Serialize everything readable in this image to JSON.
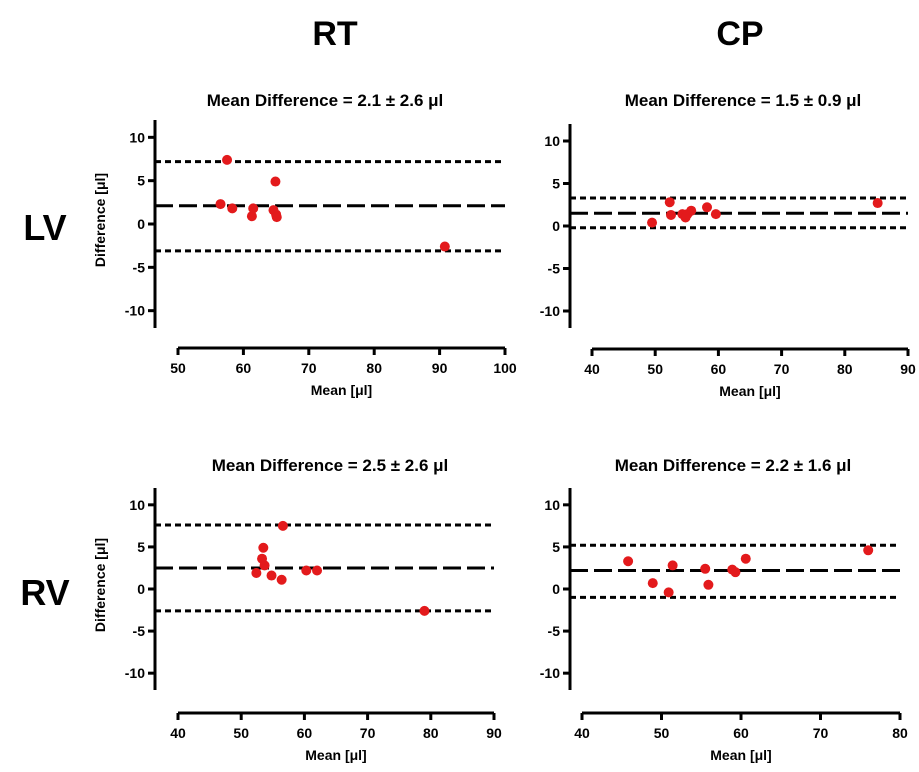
{
  "column_headers": [
    "RT",
    "CP"
  ],
  "row_headers": [
    "LV",
    "RV"
  ],
  "colors": {
    "point": "#e31a1c",
    "line": "#000000"
  },
  "chart_data": [
    {
      "type": "scatter",
      "title": "Mean Difference = 2.1 ± 2.6 μl",
      "xlabel": "Mean [μl]",
      "ylabel": "Difference [μl]",
      "xlim": [
        50,
        100
      ],
      "ylim": [
        -12,
        12
      ],
      "xticks": [
        50,
        60,
        70,
        80,
        90,
        100
      ],
      "yticks": [
        10,
        5,
        0,
        -5,
        -10
      ],
      "mean_line": 2.1,
      "upper_loa": 7.2,
      "lower_loa": -3.1,
      "points": [
        [
          56.5,
          2.3
        ],
        [
          57.5,
          7.4
        ],
        [
          58.3,
          1.8
        ],
        [
          61.3,
          0.9
        ],
        [
          61.5,
          1.8
        ],
        [
          64.6,
          1.6
        ],
        [
          64.9,
          4.9
        ],
        [
          65.0,
          1.1
        ],
        [
          65.1,
          0.8
        ],
        [
          90.8,
          -2.6
        ]
      ]
    },
    {
      "type": "scatter",
      "title": "Mean Difference = 1.5 ± 0.9 μl",
      "xlabel": "Mean [μl]",
      "ylabel": "",
      "xlim": [
        40,
        90
      ],
      "ylim": [
        -12,
        12
      ],
      "xticks": [
        40,
        50,
        60,
        70,
        80,
        90
      ],
      "yticks": [
        10,
        5,
        0,
        -5,
        -10
      ],
      "mean_line": 1.5,
      "upper_loa": 3.3,
      "lower_loa": -0.2,
      "points": [
        [
          49.5,
          0.4
        ],
        [
          52.3,
          2.8
        ],
        [
          52.5,
          1.3
        ],
        [
          54.3,
          1.4
        ],
        [
          54.8,
          1.0
        ],
        [
          55.1,
          1.4
        ],
        [
          55.7,
          1.8
        ],
        [
          58.2,
          2.2
        ],
        [
          59.6,
          1.4
        ],
        [
          85.2,
          2.7
        ]
      ]
    },
    {
      "type": "scatter",
      "title": "Mean Difference = 2.5 ± 2.6 μl",
      "xlabel": "Mean [μl]",
      "ylabel": "Difference [μl]",
      "xlim": [
        40,
        90
      ],
      "ylim": [
        -12,
        12
      ],
      "xticks": [
        40,
        50,
        60,
        70,
        80,
        90
      ],
      "yticks": [
        10,
        5,
        0,
        -5,
        -10
      ],
      "mean_line": 2.5,
      "upper_loa": 7.6,
      "lower_loa": -2.6,
      "points": [
        [
          52.4,
          1.9
        ],
        [
          53.3,
          3.6
        ],
        [
          53.5,
          4.9
        ],
        [
          53.7,
          2.8
        ],
        [
          54.8,
          1.6
        ],
        [
          56.4,
          1.1
        ],
        [
          56.6,
          7.5
        ],
        [
          60.3,
          2.2
        ],
        [
          62.0,
          2.2
        ],
        [
          79.0,
          -2.6
        ]
      ]
    },
    {
      "type": "scatter",
      "title": "Mean Difference = 2.2 ± 1.6 μl",
      "xlabel": "Mean [μl]",
      "ylabel": "",
      "xlim": [
        40,
        80
      ],
      "ylim": [
        -12,
        12
      ],
      "xticks": [
        40,
        50,
        60,
        70,
        80
      ],
      "yticks": [
        10,
        5,
        0,
        -5,
        -10
      ],
      "mean_line": 2.2,
      "upper_loa": 5.2,
      "lower_loa": -1.0,
      "points": [
        [
          45.8,
          3.3
        ],
        [
          48.9,
          0.7
        ],
        [
          50.9,
          -0.4
        ],
        [
          51.4,
          2.8
        ],
        [
          55.5,
          2.4
        ],
        [
          55.9,
          0.5
        ],
        [
          58.9,
          2.3
        ],
        [
          59.3,
          2.0
        ],
        [
          60.6,
          3.6
        ],
        [
          76.0,
          4.6
        ]
      ]
    }
  ]
}
